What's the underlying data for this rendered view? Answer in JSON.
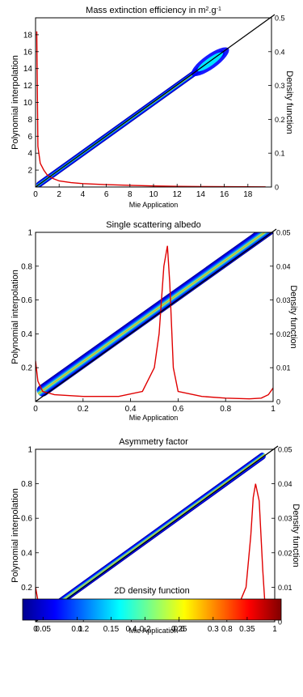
{
  "chart_data": [
    {
      "type": "heatmap",
      "title": "Mass extinction efficiency in m",
      "title_unit_sup": "2",
      "title_unit_rest": ".g",
      "title_unit_sup2": "-1",
      "xlabel": "Mie Application",
      "ylabel": "Polynomial interpolation",
      "y2label": "Density function",
      "xlim": [
        0,
        20
      ],
      "ylim": [
        0,
        20
      ],
      "y2lim": [
        0,
        0.5
      ],
      "xticks": [
        0,
        2,
        4,
        6,
        8,
        10,
        12,
        14,
        16,
        18
      ],
      "yticks": [
        2,
        4,
        6,
        8,
        10,
        12,
        14,
        16,
        18
      ],
      "y2ticks": [
        0,
        0.1,
        0.2,
        0.3,
        0.4,
        0.5
      ],
      "xtick_labels": [
        "0",
        "2",
        "4",
        "6",
        "8",
        "10",
        "12",
        "14",
        "16",
        "18"
      ],
      "ytick_labels": [
        "2",
        "4",
        "6",
        "8",
        "10",
        "12",
        "14",
        "16",
        "18"
      ],
      "y2tick_labels": [
        "0",
        "0.1",
        "0.2",
        "0.3",
        "0.4",
        "0.5"
      ],
      "identity_line": [
        [
          0,
          0
        ],
        [
          20,
          20
        ]
      ],
      "band": {
        "x_start": 0.1,
        "x_end": 16.0,
        "half_width": 0.35,
        "blob_start": 13.6
      },
      "density_curve": {
        "axis": "y2",
        "points": [
          [
            0.1,
            0.46
          ],
          [
            0.2,
            0.12
          ],
          [
            0.4,
            0.07
          ],
          [
            0.7,
            0.05
          ],
          [
            1.0,
            0.035
          ],
          [
            1.5,
            0.025
          ],
          [
            2,
            0.018
          ],
          [
            3,
            0.013
          ],
          [
            4,
            0.01
          ],
          [
            6,
            0.007
          ],
          [
            8,
            0.005
          ],
          [
            10,
            0.003
          ],
          [
            12,
            0.002
          ],
          [
            14,
            0.0015
          ],
          [
            16,
            0.001
          ],
          [
            19.5,
            0.0005
          ]
        ]
      }
    },
    {
      "type": "heatmap",
      "title": "Single scattering albedo",
      "xlabel": "Mie Application",
      "ylabel": "Polynomial interpolation",
      "y2label": "Density function",
      "xlim": [
        0,
        1
      ],
      "ylim": [
        0,
        1
      ],
      "y2lim": [
        0,
        0.05
      ],
      "xticks": [
        0,
        0.2,
        0.4,
        0.6,
        0.8,
        1
      ],
      "yticks": [
        0.2,
        0.4,
        0.6,
        0.8,
        1
      ],
      "y2ticks": [
        0,
        0.01,
        0.02,
        0.03,
        0.04,
        0.05
      ],
      "xtick_labels": [
        "0",
        "0.2",
        "0.4",
        "0.6",
        "0.8",
        "1"
      ],
      "ytick_labels": [
        "0.2",
        "0.4",
        "0.6",
        "0.8",
        "1"
      ],
      "y2tick_labels": [
        "0",
        "0.01",
        "0.02",
        "0.03",
        "0.04",
        "0.05"
      ],
      "identity_line": [
        [
          0,
          0
        ],
        [
          1,
          1
        ]
      ],
      "band": {
        "x_start": 0.01,
        "x_end": 1.0,
        "half_width": 0.035,
        "bias": 0.035
      },
      "density_curve": {
        "axis": "y2",
        "points": [
          [
            0.0,
            0.012
          ],
          [
            0.01,
            0.006
          ],
          [
            0.03,
            0.003
          ],
          [
            0.08,
            0.002
          ],
          [
            0.2,
            0.0015
          ],
          [
            0.35,
            0.0015
          ],
          [
            0.45,
            0.003
          ],
          [
            0.5,
            0.01
          ],
          [
            0.52,
            0.02
          ],
          [
            0.54,
            0.04
          ],
          [
            0.555,
            0.046
          ],
          [
            0.565,
            0.035
          ],
          [
            0.58,
            0.01
          ],
          [
            0.6,
            0.003
          ],
          [
            0.7,
            0.0015
          ],
          [
            0.8,
            0.001
          ],
          [
            0.9,
            0.0008
          ],
          [
            0.95,
            0.001
          ],
          [
            0.98,
            0.002
          ],
          [
            1.0,
            0.004
          ]
        ]
      }
    },
    {
      "type": "heatmap",
      "title": "Asymmetry factor",
      "xlabel": "Mie Application",
      "ylabel": "Polynomial interpolation",
      "y2label": "Density function",
      "xlim": [
        0,
        1
      ],
      "ylim": [
        0,
        1
      ],
      "y2lim": [
        0,
        0.05
      ],
      "xticks": [
        0,
        0.2,
        0.4,
        0.6,
        0.8,
        1
      ],
      "yticks": [
        0.2,
        0.4,
        0.6,
        0.8,
        1
      ],
      "y2ticks": [
        0,
        0.01,
        0.02,
        0.03,
        0.04,
        0.05
      ],
      "xtick_labels": [
        "0",
        "0.2",
        "0.4",
        "0.6",
        "0.8",
        "1"
      ],
      "ytick_labels": [
        "0.2",
        "0.4",
        "0.6",
        "0.8",
        "1"
      ],
      "y2tick_labels": [
        "0",
        "0.01",
        "0.02",
        "0.03",
        "0.04",
        "0.05"
      ],
      "identity_line": [
        [
          0,
          0
        ],
        [
          1,
          1
        ]
      ],
      "band": {
        "x_start": 0.02,
        "x_end": 0.96,
        "half_width": 0.02,
        "bias": 0.012
      },
      "density_curve": {
        "axis": "y2",
        "points": [
          [
            0.0,
            0.01
          ],
          [
            0.01,
            0.006
          ],
          [
            0.03,
            0.003
          ],
          [
            0.1,
            0.0015
          ],
          [
            0.2,
            0.001
          ],
          [
            0.3,
            0.0008
          ],
          [
            0.4,
            0.0008
          ],
          [
            0.5,
            0.0012
          ],
          [
            0.6,
            0.0018
          ],
          [
            0.7,
            0.0025
          ],
          [
            0.8,
            0.003
          ],
          [
            0.85,
            0.005
          ],
          [
            0.88,
            0.01
          ],
          [
            0.9,
            0.025
          ],
          [
            0.91,
            0.036
          ],
          [
            0.92,
            0.04
          ],
          [
            0.935,
            0.035
          ],
          [
            0.95,
            0.015
          ],
          [
            0.96,
            0.004
          ],
          [
            0.97,
            0.0015
          ]
        ]
      }
    }
  ],
  "colorbar": {
    "title": "2D density function",
    "range": [
      0.02,
      0.4
    ],
    "ticks": [
      0.05,
      0.1,
      0.15,
      0.2,
      0.25,
      0.3,
      0.35
    ],
    "tick_labels": [
      "0.05",
      "0.1",
      "0.15",
      "0.2",
      "0.25",
      "0.3",
      "0.35"
    ],
    "colormap": [
      "#00008f",
      "#0000ff",
      "#0080ff",
      "#00ffff",
      "#80ff80",
      "#ffff00",
      "#ff8000",
      "#ff0000",
      "#800000"
    ]
  },
  "colors": {
    "density_curve": "#e00000",
    "identity_line": "#000000",
    "axes": "#000000"
  }
}
